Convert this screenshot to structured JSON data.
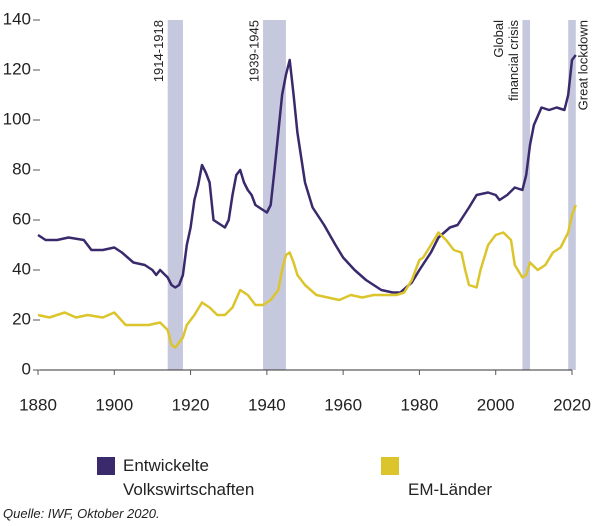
{
  "chart_data": {
    "type": "line",
    "xlim": [
      1880,
      2020
    ],
    "xticks": [
      1880,
      1900,
      1920,
      1940,
      1960,
      1980,
      2000,
      2020
    ],
    "ylim": [
      0,
      140
    ],
    "yticks": [
      0,
      20,
      40,
      60,
      80,
      100,
      120,
      140
    ],
    "grid": false,
    "band_color": "#c6c9de",
    "bands": [
      {
        "from": 1914,
        "to": 1918,
        "label_lines": [
          "1914-1918"
        ]
      },
      {
        "from": 1939,
        "to": 1945,
        "label_lines": [
          "1939-1945"
        ]
      },
      {
        "from": 2007,
        "to": 2009,
        "label_lines": [
          "Global",
          "financial crisis"
        ]
      },
      {
        "from": 2019,
        "to": 2021,
        "label_lines": [
          "Great lockdown"
        ]
      }
    ],
    "series": [
      {
        "name": "Entwickelte Volkswirtschaften",
        "color": "#3a2a6c",
        "x": [
          1880,
          1882,
          1885,
          1888,
          1892,
          1894,
          1897,
          1900,
          1902,
          1905,
          1908,
          1910,
          1911,
          1912,
          1914,
          1915,
          1916,
          1917,
          1918,
          1919,
          1920,
          1921,
          1922,
          1923,
          1924,
          1925,
          1926,
          1928,
          1929,
          1930,
          1931,
          1932,
          1933,
          1934,
          1935,
          1936,
          1937,
          1938,
          1939,
          1940,
          1941,
          1942,
          1943,
          1944,
          1945,
          1946,
          1947,
          1948,
          1949,
          1950,
          1952,
          1955,
          1958,
          1960,
          1963,
          1966,
          1970,
          1973,
          1975,
          1978,
          1980,
          1983,
          1985,
          1988,
          1990,
          1993,
          1995,
          1998,
          2000,
          2001,
          2003,
          2005,
          2007,
          2008,
          2009,
          2010,
          2012,
          2014,
          2016,
          2018,
          2019,
          2020,
          2021
        ],
        "values": [
          54,
          52,
          52,
          53,
          52,
          48,
          48,
          49,
          47,
          43,
          42,
          40,
          38,
          40,
          37,
          34,
          33,
          34,
          38,
          50,
          57,
          68,
          74,
          82,
          79,
          75,
          60,
          58,
          57,
          60,
          70,
          78,
          80,
          75,
          72,
          70,
          66,
          65,
          64,
          63,
          66,
          80,
          95,
          110,
          118,
          124,
          110,
          95,
          85,
          75,
          65,
          58,
          50,
          45,
          40,
          36,
          32,
          31,
          31,
          35,
          40,
          47,
          53,
          57,
          58,
          65,
          70,
          71,
          70,
          68,
          70,
          73,
          72,
          78,
          90,
          98,
          105,
          104,
          105,
          104,
          110,
          124,
          126
        ]
      },
      {
        "name": "EM-Länder",
        "color": "#dcc52c",
        "x": [
          1880,
          1883,
          1887,
          1890,
          1893,
          1897,
          1900,
          1903,
          1906,
          1909,
          1912,
          1914,
          1915,
          1916,
          1917,
          1918,
          1919,
          1921,
          1923,
          1925,
          1927,
          1929,
          1931,
          1933,
          1935,
          1937,
          1939,
          1941,
          1943,
          1944,
          1945,
          1946,
          1947,
          1948,
          1950,
          1953,
          1956,
          1959,
          1962,
          1965,
          1968,
          1971,
          1974,
          1976,
          1978,
          1980,
          1981,
          1983,
          1985,
          1987,
          1989,
          1991,
          1992,
          1993,
          1995,
          1996,
          1998,
          2000,
          2002,
          2004,
          2005,
          2007,
          2008,
          2009,
          2011,
          2013,
          2015,
          2017,
          2019,
          2020,
          2021
        ],
        "values": [
          22,
          21,
          23,
          21,
          22,
          21,
          23,
          18,
          18,
          18,
          19,
          16,
          10,
          9,
          11,
          13,
          18,
          22,
          27,
          25,
          22,
          22,
          25,
          32,
          30,
          26,
          26,
          28,
          32,
          40,
          46,
          47,
          43,
          38,
          34,
          30,
          29,
          28,
          30,
          29,
          30,
          30,
          30,
          31,
          36,
          44,
          45,
          50,
          55,
          52,
          48,
          47,
          40,
          34,
          33,
          40,
          50,
          54,
          55,
          52,
          42,
          37,
          38,
          43,
          40,
          42,
          47,
          49,
          55,
          62,
          66
        ]
      }
    ],
    "source": "Quelle: IWF, Oktober 2020."
  }
}
